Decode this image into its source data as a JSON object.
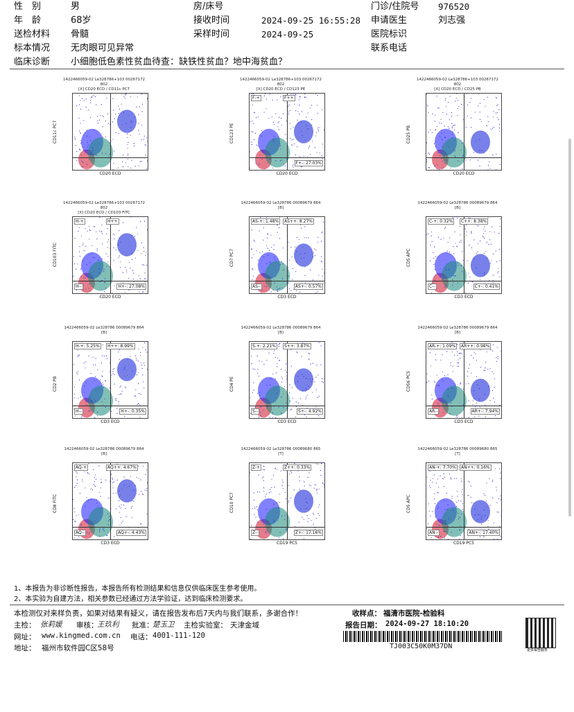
{
  "header": {
    "gender_label": "性　别",
    "gender": "男",
    "age_label": "年　龄",
    "age": "68岁",
    "specimen_label": "送检材料",
    "specimen": "骨髓",
    "condition_label": "标本情况",
    "condition": "无肉眼可见异常",
    "diagnosis_label": "临床诊断",
    "diagnosis": "小细胞低色素性贫血待查：缺铁性贫血？地中海贫血？",
    "room_label": "房/床号",
    "received_label": "接收时间",
    "received": "2024-09-25 16:55:28",
    "collected_label": "采样时间",
    "collected": "2024-09-25",
    "clinic_label": "门诊/住院号",
    "clinic": "976520",
    "doctor_label": "申请医生",
    "doctor": "刘志强",
    "hospital_id_label": "医院标识",
    "phone_label": "联系电话"
  },
  "plots": [
    {
      "t1": "1422466059-02 Le328786+103 00267172",
      "t2": "802",
      "t3": "[X] CD20 ECD / CD11c PC7",
      "ylabel": "CD11c PC7",
      "xlabel": "CD20 ECD",
      "quads": []
    },
    {
      "t1": "1422466059-02 Le328786+103 00267172",
      "t2": "802",
      "t3": "[X] CD20 ECD / CD123 PE",
      "ylabel": "CD123 PE",
      "xlabel": "CD20 ECD",
      "quads": [
        {
          "k": "tl",
          "v": "F-+"
        },
        {
          "k": "tr",
          "v": "F++"
        },
        {
          "k": "br",
          "v": "F+-: 27.03%"
        }
      ]
    },
    {
      "t1": "1422466059-02 Le328786+103 00267172",
      "t2": "802",
      "t3": "[X] CD20 ECD / CD25 PB",
      "ylabel": "CD25 PB",
      "xlabel": "CD20 ECD",
      "quads": []
    },
    {
      "t1": "1422466059-02 Le328786+103 00267172",
      "t2": "802",
      "t3": "[X] CD20 ECD / CD103 FITC",
      "ylabel": "CD103 FITC",
      "xlabel": "CD20 ECD",
      "quads": [
        {
          "k": "tl",
          "v": "H-+"
        },
        {
          "k": "tr",
          "v": "H++"
        },
        {
          "k": "bl",
          "v": "H--"
        },
        {
          "k": "br",
          "v": "H+-: 27.08%"
        }
      ]
    },
    {
      "t1": "1422466059-02 Le328786 00089679 864",
      "t2": "[B]",
      "t3": "",
      "ylabel": "CD7 PC7",
      "xlabel": "CD3 ECD",
      "quads": [
        {
          "k": "tl",
          "v": "AS-+: 1.48%"
        },
        {
          "k": "tr",
          "v": "AS++: 8.27%"
        },
        {
          "k": "bl",
          "v": "AS--"
        },
        {
          "k": "br",
          "v": "AS+-: 0.57%"
        }
      ]
    },
    {
      "t1": "1422466059-02 Le328786 00089679 864",
      "t2": "[B]",
      "t3": "",
      "ylabel": "CD5 APC",
      "xlabel": "CD3 ECD",
      "quads": [
        {
          "k": "tl",
          "v": "C-+: 0.32%"
        },
        {
          "k": "tr",
          "v": "C++: 8.38%"
        },
        {
          "k": "bl",
          "v": "C--"
        },
        {
          "k": "br",
          "v": "C+-: 0.41%"
        }
      ]
    },
    {
      "t1": "1422466059-02 Le328786 00089679 864",
      "t2": "[B]",
      "t3": "",
      "ylabel": "CD2 PB",
      "xlabel": "CD3 ECD",
      "quads": [
        {
          "k": "tl",
          "v": "H-+: 5.25%"
        },
        {
          "k": "tr",
          "v": "H++: 8.99%"
        },
        {
          "k": "bl",
          "v": "H--"
        },
        {
          "k": "br",
          "v": "H+-: 0.35%"
        }
      ]
    },
    {
      "t1": "1422466059-02 Le328786 00089679 864",
      "t2": "[B]",
      "t3": "",
      "ylabel": "CD4 PE",
      "xlabel": "CD3 ECD",
      "quads": [
        {
          "k": "tl",
          "v": "S-+: 2.21%"
        },
        {
          "k": "tr",
          "v": "S++: 3.87%"
        },
        {
          "k": "bl",
          "v": "S--"
        },
        {
          "k": "br",
          "v": "S+-: 4.92%"
        }
      ]
    },
    {
      "t1": "1422466059-02 Le328786 00089679 864",
      "t2": "[B]",
      "t3": "",
      "ylabel": "CD56 PC5",
      "xlabel": "CD3 ECD",
      "quads": [
        {
          "k": "tl",
          "v": "AR-+: 1.09%"
        },
        {
          "k": "tr",
          "v": "AR++: 0.98%"
        },
        {
          "k": "bl",
          "v": "AR--"
        },
        {
          "k": "br",
          "v": "AR+-: 7.94%"
        }
      ]
    },
    {
      "t1": "1422466059-02 Le328786 00089679 864",
      "t2": "[B]",
      "t3": "",
      "ylabel": "CD8 FITC",
      "xlabel": "CD3 ECD",
      "quads": [
        {
          "k": "tl",
          "v": "AQ-+"
        },
        {
          "k": "tr",
          "v": "AQ++: 4.67%"
        },
        {
          "k": "bl",
          "v": "AQ--"
        },
        {
          "k": "br",
          "v": "AQ+-: 4.43%"
        }
      ]
    },
    {
      "t1": "1422466059-02 Le328786 00089680 865",
      "t2": "[T]",
      "t3": "",
      "ylabel": "CD10 PC7",
      "xlabel": "CD19 PC5",
      "quads": [
        {
          "k": "tl",
          "v": "Z-+"
        },
        {
          "k": "tr",
          "v": "Z++: 0.33%"
        },
        {
          "k": "bl",
          "v": "Z--"
        },
        {
          "k": "br",
          "v": "Z+-: 17.16%"
        }
      ]
    },
    {
      "t1": "1422466059-02 Le328786 00089680 865",
      "t2": "[T]",
      "t3": "",
      "ylabel": "CD5 APC",
      "xlabel": "CD19 PC5",
      "quads": [
        {
          "k": "tl",
          "v": "AN-+: 7.70%"
        },
        {
          "k": "tr",
          "v": "AN++: 0.16%"
        },
        {
          "k": "bl",
          "v": "AN--"
        },
        {
          "k": "br",
          "v": "AN+-: 17.40%"
        }
      ]
    }
  ],
  "notes": {
    "n1": "1、本报告为非诊断性报告，本报告所有检测结果和信息仅供临床医生参考使用。",
    "n2": "2、本实验为自建方法，相关参数已经通过方法学验证，达到临床检测要求。"
  },
  "footer": {
    "disclaimer": "本检测仅对来样负责，如果对结果有疑义，请在报告发布后7天内与我们联系，多谢合作！",
    "receiving_label": "收样点：",
    "receiving": "福清市医院-检验科",
    "examiner_label": "主检：",
    "examiner": "张莉媛",
    "reviewer_label": "审核：",
    "reviewer": "王玖利",
    "approver_label": "批准：",
    "approver": "楚玉卫",
    "lab_label": "主检实验室：",
    "lab": "天津金域",
    "report_date_label": "报告日期：",
    "report_date": "2024-09-27 18:10:20",
    "website_label": "网址：",
    "website": "www.kingmed.com.cn",
    "phone_label": "电话：",
    "phone": "4001-111-120",
    "address_label": "地址：",
    "address": "福州市软件园C区58号",
    "barcode": "TJ003C50K0M37DN",
    "qr_caption": "更多报告服务"
  }
}
